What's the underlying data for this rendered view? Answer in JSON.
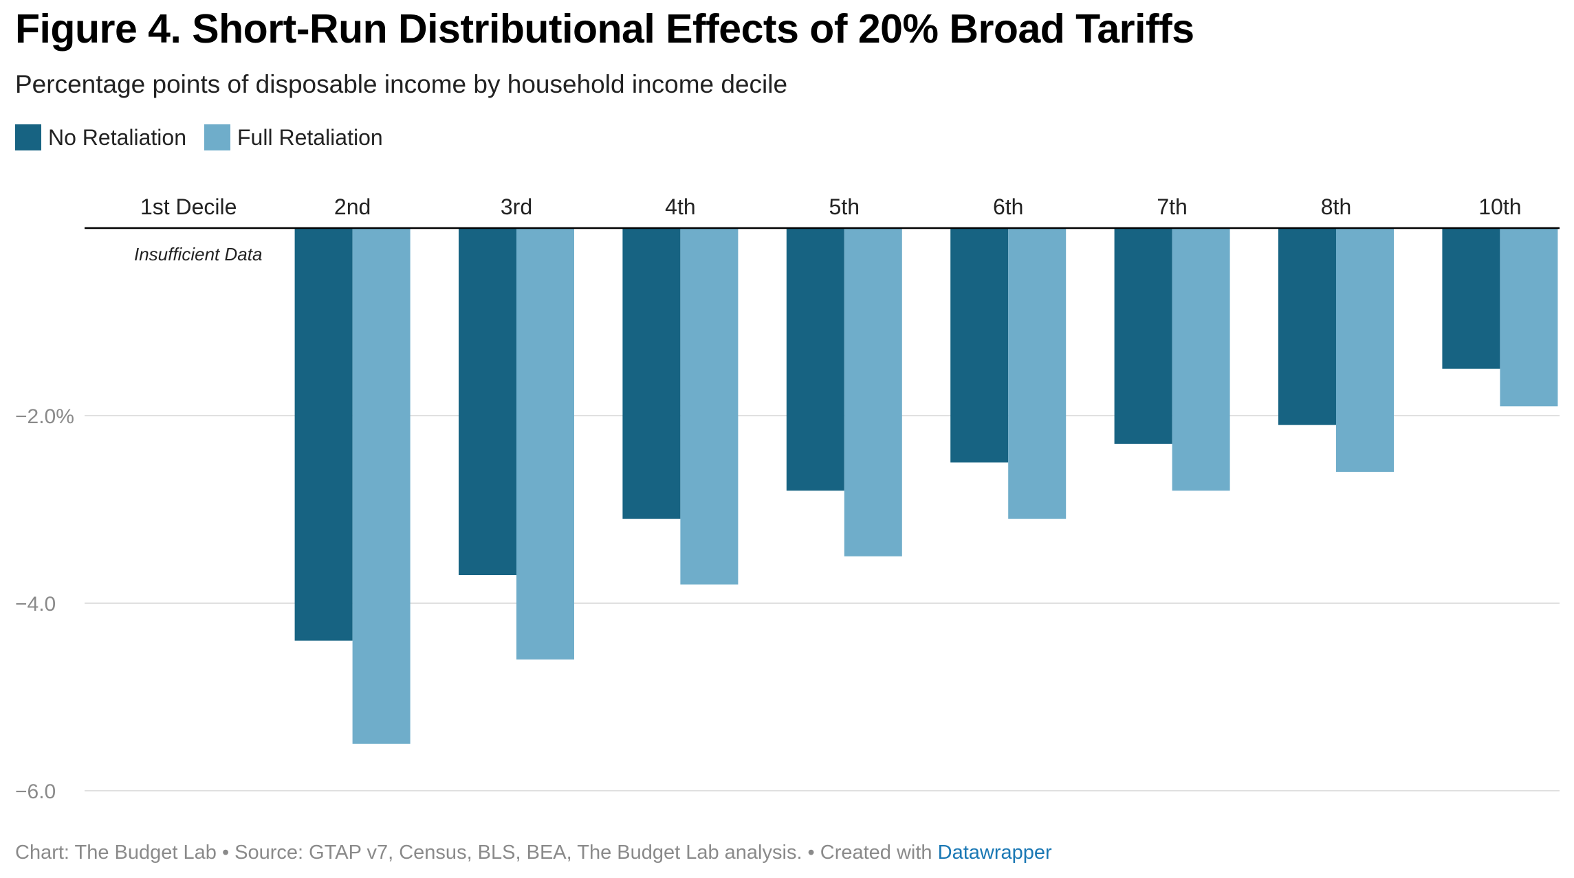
{
  "title": "Figure 4. Short-Run Distributional Effects of 20% Broad Tariffs",
  "subtitle": "Percentage points of disposable income by household income decile",
  "colors": {
    "no_retaliation": "#176382",
    "full_retaliation": "#6fadca",
    "gridline": "#e0e0e0",
    "baseline": "#000000",
    "footer_link": "#1a78b4"
  },
  "chart_data": {
    "type": "bar",
    "categories": [
      "1st Decile",
      "2nd",
      "3rd",
      "4th",
      "5th",
      "6th",
      "7th",
      "8th",
      "10th"
    ],
    "series": [
      {
        "name": "No Retaliation",
        "color": "#176382",
        "values": [
          null,
          -4.4,
          -3.7,
          -3.1,
          -2.8,
          -2.5,
          -2.3,
          -2.1,
          -1.5
        ]
      },
      {
        "name": "Full Retaliation",
        "color": "#6fadca",
        "values": [
          null,
          -5.5,
          -4.6,
          -3.8,
          -3.5,
          -3.1,
          -2.8,
          -2.6,
          -1.9
        ]
      }
    ],
    "y_ticks": [
      -2.0,
      -4.0,
      -6.0
    ],
    "y_tick_labels": [
      "−2.0%",
      "−4.0",
      "−6.0"
    ],
    "ylim": [
      -6.0,
      0
    ],
    "annotation": "Insufficient Data",
    "grid": true,
    "legend": "top-left"
  },
  "footer": {
    "text": "Chart: The Budget Lab • Source: GTAP v7, Census, BLS, BEA, The Budget Lab analysis. • Created with ",
    "link": "Datawrapper"
  }
}
